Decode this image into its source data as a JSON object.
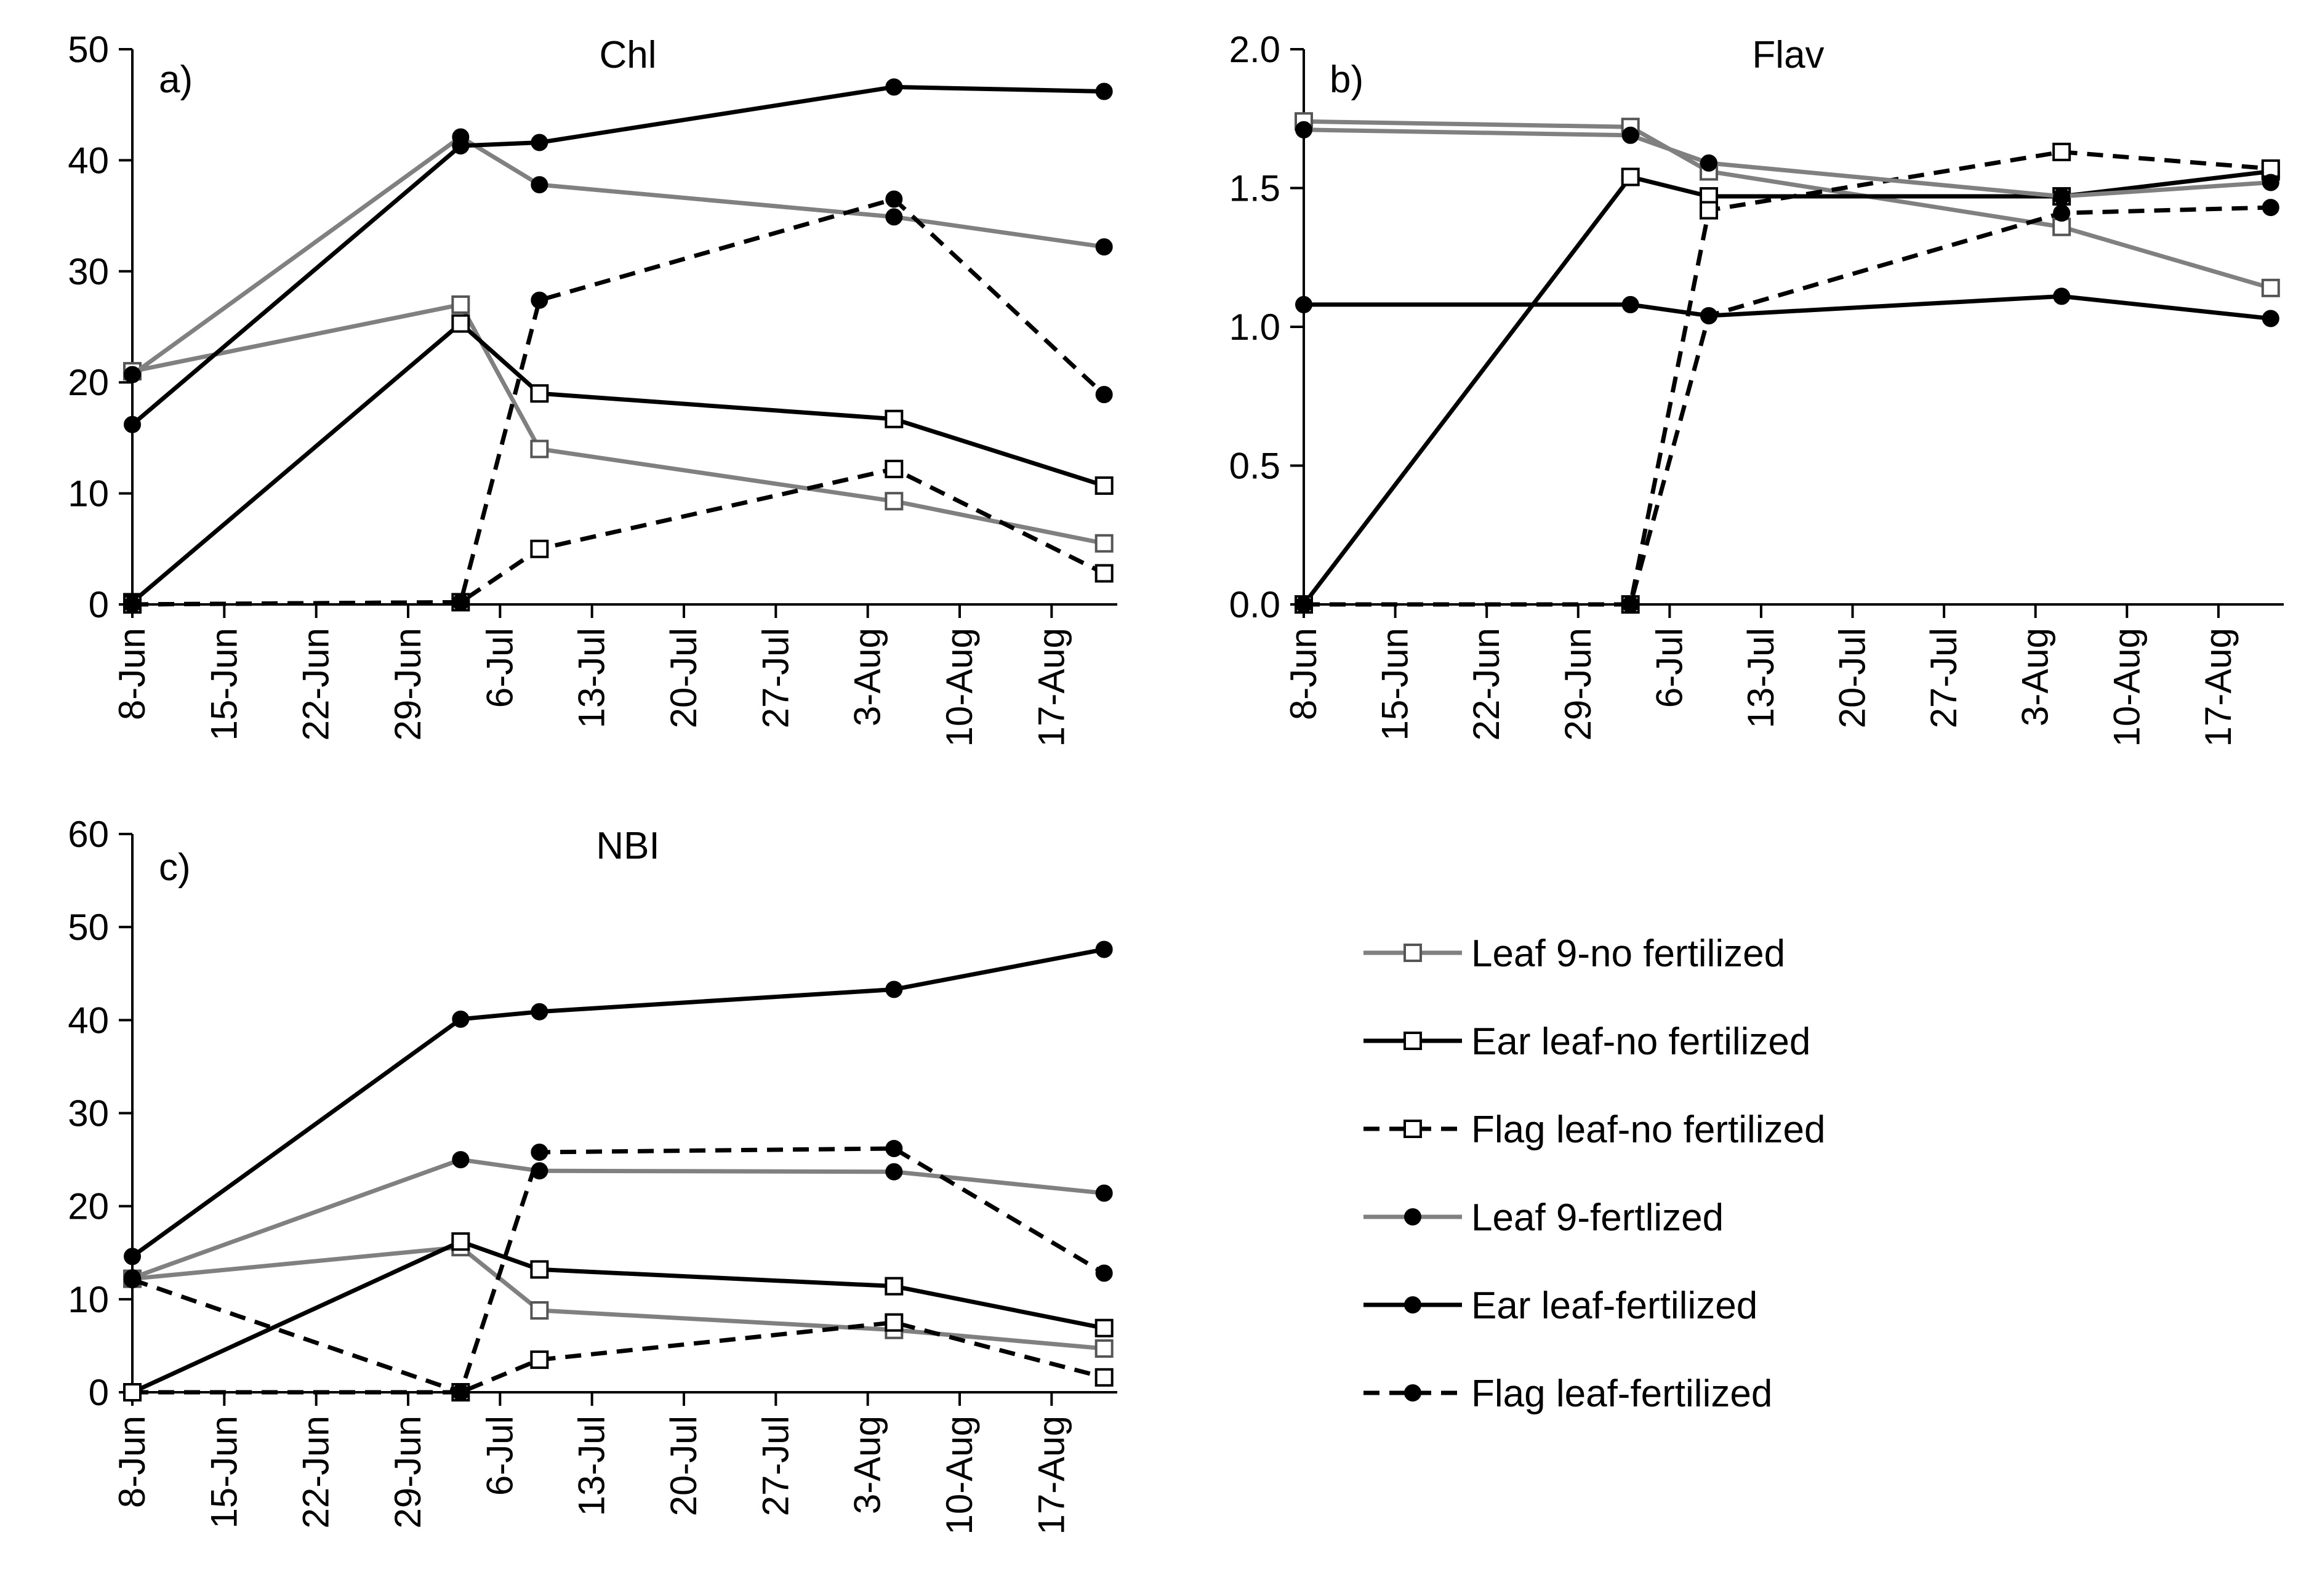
{
  "chart_data": [
    {
      "id": "chl",
      "type": "line",
      "panel_label": "a)",
      "title": "Chl",
      "xlabel": "",
      "ylabel": "",
      "ylim": [
        0,
        50
      ],
      "yticks": [
        0,
        10,
        20,
        30,
        40,
        50
      ],
      "ytick_labels": [
        "0",
        "10",
        "20",
        "30",
        "40",
        "50"
      ],
      "xlim_days": [
        0,
        75
      ],
      "xticks_days": [
        0,
        7,
        14,
        21,
        28,
        35,
        42,
        49,
        56,
        63,
        70
      ],
      "xtick_labels": [
        "8-Jun",
        "15-Jun",
        "22-Jun",
        "29-Jun",
        "6-Jul",
        "13-Jul",
        "20-Jul",
        "27-Jul",
        "3-Aug",
        "10-Aug",
        "17-Aug"
      ],
      "x_days": [
        0,
        25,
        31,
        58,
        74
      ],
      "series": [
        {
          "name": "Leaf 9-no fertilized",
          "values": [
            21.0,
            27.0,
            14.0,
            9.3,
            5.5
          ]
        },
        {
          "name": "Ear leaf-no fertilized",
          "values": [
            0.2,
            25.3,
            19.0,
            16.7,
            10.7
          ]
        },
        {
          "name": "Flag leaf-no fertilized",
          "values": [
            0.0,
            0.2,
            5.0,
            12.2,
            2.8
          ]
        },
        {
          "name": "Leaf 9-fertlized",
          "values": [
            20.7,
            42.1,
            37.8,
            34.9,
            32.2
          ]
        },
        {
          "name": "Ear leaf-fertilized",
          "values": [
            16.2,
            41.3,
            41.6,
            46.6,
            46.2
          ]
        },
        {
          "name": "Flag leaf-fertilized",
          "values": [
            0.0,
            0.2,
            27.4,
            36.5,
            18.9
          ]
        }
      ]
    },
    {
      "id": "flav",
      "type": "line",
      "panel_label": "b)",
      "title": "Flav",
      "xlabel": "",
      "ylabel": "",
      "ylim": [
        0,
        2
      ],
      "yticks": [
        0,
        0.5,
        1,
        1.5,
        2
      ],
      "ytick_labels": [
        "0.0",
        "0.5",
        "1.0",
        "1.5",
        "2.0"
      ],
      "xlim_days": [
        0,
        75
      ],
      "xticks_days": [
        0,
        7,
        14,
        21,
        28,
        35,
        42,
        49,
        56,
        63,
        70
      ],
      "xtick_labels": [
        "8-Jun",
        "15-Jun",
        "22-Jun",
        "29-Jun",
        "6-Jul",
        "13-Jul",
        "20-Jul",
        "27-Jul",
        "3-Aug",
        "10-Aug",
        "17-Aug"
      ],
      "x_days": [
        0,
        25,
        31,
        58,
        74
      ],
      "series": [
        {
          "name": "Leaf 9-no fertilized",
          "values": [
            1.74,
            1.72,
            1.56,
            1.36,
            1.14
          ]
        },
        {
          "name": "Ear leaf-no fertilized",
          "values": [
            0.0,
            1.54,
            1.47,
            1.47,
            1.56
          ]
        },
        {
          "name": "Flag leaf-no fertilized",
          "values": [
            0.0,
            0.0,
            1.42,
            1.63,
            1.57
          ]
        },
        {
          "name": "Leaf 9-fertlized",
          "values": [
            1.71,
            1.69,
            1.59,
            1.47,
            1.52
          ]
        },
        {
          "name": "Ear leaf-fertilized",
          "values": [
            1.08,
            1.08,
            1.04,
            1.11,
            1.03
          ]
        },
        {
          "name": "Flag leaf-fertilized",
          "values": [
            0.0,
            0.0,
            1.04,
            1.41,
            1.43
          ]
        }
      ]
    },
    {
      "id": "nbi",
      "type": "line",
      "panel_label": "c)",
      "title": "NBI",
      "xlabel": "",
      "ylabel": "",
      "ylim": [
        0,
        60
      ],
      "yticks": [
        0,
        10,
        20,
        30,
        40,
        50,
        60
      ],
      "ytick_labels": [
        "0",
        "10",
        "20",
        "30",
        "40",
        "50",
        "60"
      ],
      "xlim_days": [
        0,
        75
      ],
      "xticks_days": [
        0,
        7,
        14,
        21,
        28,
        35,
        42,
        49,
        56,
        63,
        70
      ],
      "xtick_labels": [
        "8-Jun",
        "15-Jun",
        "22-Jun",
        "29-Jun",
        "6-Jul",
        "13-Jul",
        "20-Jul",
        "27-Jul",
        "3-Aug",
        "10-Aug",
        "17-Aug"
      ],
      "x_days": [
        0,
        25,
        31,
        58,
        74
      ],
      "series": [
        {
          "name": "Leaf 9-no fertilized",
          "values": [
            12.2,
            15.6,
            8.8,
            6.7,
            4.7
          ]
        },
        {
          "name": "Ear leaf-no fertilized",
          "values": [
            0.0,
            16.2,
            13.2,
            11.4,
            6.9
          ]
        },
        {
          "name": "Flag leaf-no fertilized",
          "values": [
            0.0,
            0.0,
            3.5,
            7.5,
            1.6
          ]
        },
        {
          "name": "Leaf 9-fertlized",
          "values": [
            12.3,
            25.0,
            23.8,
            23.7,
            21.4
          ]
        },
        {
          "name": "Ear leaf-fertilized",
          "values": [
            14.6,
            40.1,
            40.9,
            43.3,
            47.6
          ]
        },
        {
          "name": "Flag leaf-fertilized",
          "values": [
            12.1,
            0.0,
            25.8,
            26.2,
            12.8
          ]
        }
      ]
    }
  ],
  "legend": {
    "placement": "bottom-right",
    "items": [
      {
        "label": "Leaf 9-no fertilized",
        "color": "#808080",
        "dash": false,
        "marker": "open-square"
      },
      {
        "label": "Ear leaf-no fertilized",
        "color": "#000000",
        "dash": false,
        "marker": "open-square"
      },
      {
        "label": "Flag leaf-no fertilized",
        "color": "#000000",
        "dash": true,
        "marker": "open-square"
      },
      {
        "label": "Leaf 9-fertlized",
        "color": "#808080",
        "dash": false,
        "marker": "filled-circle"
      },
      {
        "label": "Ear leaf-fertilized",
        "color": "#000000",
        "dash": false,
        "marker": "filled-circle"
      },
      {
        "label": "Flag leaf-fertilized",
        "color": "#000000",
        "dash": true,
        "marker": "filled-circle"
      }
    ]
  }
}
